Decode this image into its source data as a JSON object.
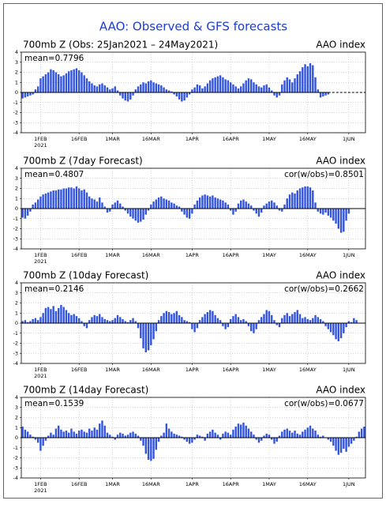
{
  "chart_data": [
    {
      "type": "bar",
      "title": "AAO: Observed & GFS forecasts",
      "left_title": "700mb Z (Obs: 25Jan2021 – 24May2021)",
      "right_title": "AAO index",
      "mean_label": "mean=0.7796",
      "year_label": "2021",
      "color": "#3355dd",
      "grid": true,
      "xlim": [
        24.5,
        158.5
      ],
      "ylim": [
        -4,
        4
      ],
      "yticks": [
        -4,
        -3,
        -2,
        -1,
        0,
        1,
        2,
        3,
        4
      ],
      "xticks": [
        {
          "value": 32,
          "label": "1FEB"
        },
        {
          "value": 47,
          "label": "16FEB"
        },
        {
          "value": 60,
          "label": "1MAR"
        },
        {
          "value": 75,
          "label": "16MAR"
        },
        {
          "value": 91,
          "label": "1APR"
        },
        {
          "value": 106,
          "label": "16APR"
        },
        {
          "value": 121,
          "label": "1MAY"
        },
        {
          "value": 136,
          "label": "16MAY"
        },
        {
          "value": 152,
          "label": "1JUN"
        }
      ],
      "x": [
        25,
        26,
        27,
        28,
        29,
        30,
        31,
        32,
        33,
        34,
        35,
        36,
        37,
        38,
        39,
        40,
        41,
        42,
        43,
        44,
        45,
        46,
        47,
        48,
        49,
        50,
        51,
        52,
        53,
        54,
        55,
        56,
        57,
        58,
        59,
        60,
        61,
        62,
        63,
        64,
        65,
        66,
        67,
        68,
        69,
        70,
        71,
        72,
        73,
        74,
        75,
        76,
        77,
        78,
        79,
        80,
        81,
        82,
        83,
        84,
        85,
        86,
        87,
        88,
        89,
        90,
        91,
        92,
        93,
        94,
        95,
        96,
        97,
        98,
        99,
        100,
        101,
        102,
        103,
        104,
        105,
        106,
        107,
        108,
        109,
        110,
        111,
        112,
        113,
        114,
        115,
        116,
        117,
        118,
        119,
        120,
        121,
        122,
        123,
        124,
        125,
        126,
        127,
        128,
        129,
        130,
        131,
        132,
        133,
        134,
        135,
        136,
        137,
        138,
        139,
        140,
        141,
        142,
        143,
        144
      ],
      "values": [
        -0.6,
        -0.5,
        -0.4,
        -0.3,
        -0.2,
        0.3,
        0.6,
        1.4,
        1.6,
        1.8,
        2.0,
        2.3,
        2.2,
        2.0,
        1.8,
        1.6,
        1.7,
        1.9,
        2.1,
        2.2,
        2.3,
        2.4,
        2.2,
        2.0,
        1.7,
        1.4,
        1.1,
        0.9,
        0.7,
        0.6,
        0.8,
        0.9,
        0.7,
        0.5,
        0.3,
        0.4,
        0.6,
        0.2,
        -0.3,
        -0.6,
        -0.8,
        -0.9,
        -0.7,
        -0.3,
        0.3,
        0.6,
        0.8,
        1.0,
        0.9,
        1.1,
        1.2,
        1.0,
        0.9,
        0.8,
        0.7,
        0.5,
        0.3,
        0.2,
        0.1,
        -0.2,
        -0.4,
        -0.7,
        -0.9,
        -0.8,
        -0.5,
        -0.2,
        0.3,
        0.5,
        0.8,
        0.7,
        0.4,
        0.6,
        0.9,
        1.2,
        1.4,
        1.5,
        1.6,
        1.7,
        1.5,
        1.3,
        1.2,
        1.0,
        0.8,
        0.6,
        0.4,
        0.6,
        0.9,
        1.2,
        1.4,
        1.3,
        1.0,
        0.8,
        0.6,
        0.5,
        0.7,
        0.8,
        0.5,
        0.2,
        -0.3,
        -0.5,
        -0.3,
        0.8,
        1.2,
        1.5,
        1.3,
        1.0,
        1.4,
        1.8,
        2.1,
        2.5,
        2.8,
        2.6,
        2.9,
        2.7,
        1.5,
        0.3,
        -0.5,
        -0.4,
        -0.3,
        -0.2
      ]
    },
    {
      "type": "bar",
      "left_title": "700mb Z (7day Forecast)",
      "right_title": "AAO index",
      "mean_label": "mean=0.4807",
      "cor_label": "cor(w/obs)=0.8501",
      "year_label": "2021",
      "color": "#3355dd",
      "grid": true,
      "xlim": [
        24.5,
        158.5
      ],
      "ylim": [
        -4,
        4
      ],
      "yticks": [
        -4,
        -3,
        -2,
        -1,
        0,
        1,
        2,
        3,
        4
      ],
      "xticks": [
        {
          "value": 32,
          "label": "1FEB"
        },
        {
          "value": 47,
          "label": "16FEB"
        },
        {
          "value": 60,
          "label": "1MAR"
        },
        {
          "value": 75,
          "label": "16MAR"
        },
        {
          "value": 91,
          "label": "1APR"
        },
        {
          "value": 106,
          "label": "16APR"
        },
        {
          "value": 121,
          "label": "1MAY"
        },
        {
          "value": 136,
          "label": "16MAY"
        },
        {
          "value": 152,
          "label": "1JUN"
        }
      ],
      "x": [
        25,
        26,
        27,
        28,
        29,
        30,
        31,
        32,
        33,
        34,
        35,
        36,
        37,
        38,
        39,
        40,
        41,
        42,
        43,
        44,
        45,
        46,
        47,
        48,
        49,
        50,
        51,
        52,
        53,
        54,
        55,
        56,
        57,
        58,
        59,
        60,
        61,
        62,
        63,
        64,
        65,
        66,
        67,
        68,
        69,
        70,
        71,
        72,
        73,
        74,
        75,
        76,
        77,
        78,
        79,
        80,
        81,
        82,
        83,
        84,
        85,
        86,
        87,
        88,
        89,
        90,
        91,
        92,
        93,
        94,
        95,
        96,
        97,
        98,
        99,
        100,
        101,
        102,
        103,
        104,
        105,
        106,
        107,
        108,
        109,
        110,
        111,
        112,
        113,
        114,
        115,
        116,
        117,
        118,
        119,
        120,
        121,
        122,
        123,
        124,
        125,
        126,
        127,
        128,
        129,
        130,
        131,
        132,
        133,
        134,
        135,
        136,
        137,
        138,
        139,
        140,
        141,
        142,
        143,
        144,
        145,
        146,
        147,
        148,
        149,
        150,
        151,
        152
      ],
      "values": [
        -0.9,
        -1.0,
        -0.7,
        -0.3,
        0.4,
        0.6,
        0.9,
        1.2,
        1.4,
        1.5,
        1.6,
        1.7,
        1.8,
        1.8,
        1.9,
        1.9,
        2.0,
        2.0,
        2.1,
        2.1,
        2.0,
        2.2,
        2.0,
        1.8,
        1.9,
        1.6,
        1.2,
        1.0,
        0.9,
        0.7,
        1.1,
        0.6,
        0.2,
        -0.4,
        -0.3,
        0.4,
        0.6,
        0.8,
        0.5,
        0.2,
        -0.2,
        -0.5,
        -0.8,
        -1.0,
        -1.2,
        -1.4,
        -1.3,
        -1.1,
        -0.6,
        -0.2,
        0.4,
        0.7,
        0.9,
        1.1,
        1.2,
        1.0,
        0.9,
        0.8,
        0.6,
        0.5,
        0.3,
        0.2,
        -0.3,
        -0.6,
        -0.9,
        -1.0,
        -0.5,
        0.4,
        0.8,
        1.1,
        1.3,
        1.4,
        1.3,
        1.2,
        1.3,
        1.1,
        1.0,
        0.9,
        0.8,
        0.6,
        0.4,
        -0.2,
        -0.6,
        -0.3,
        0.5,
        0.8,
        0.9,
        0.7,
        0.5,
        0.3,
        -0.2,
        -0.5,
        -0.8,
        -0.4,
        0.3,
        0.5,
        0.7,
        0.8,
        0.6,
        0.3,
        -0.2,
        -0.3,
        0.4,
        1.0,
        1.4,
        1.6,
        1.5,
        1.8,
        2.0,
        2.1,
        2.2,
        2.2,
        2.1,
        1.8,
        0.6,
        -0.3,
        -0.5,
        -0.6,
        -0.4,
        -0.7,
        -0.9,
        -1.2,
        -1.5,
        -2.0,
        -2.4,
        -2.3,
        -1.2,
        -0.5
      ]
    },
    {
      "type": "bar",
      "left_title": "700mb Z (10day Forecast)",
      "right_title": "AAO index",
      "mean_label": "mean=0.2146",
      "cor_label": "cor(w/obs)=0.2662",
      "year_label": "2021",
      "color": "#3355dd",
      "grid": true,
      "xlim": [
        24.5,
        158.5
      ],
      "ylim": [
        -4,
        4
      ],
      "yticks": [
        -4,
        -3,
        -2,
        -1,
        0,
        1,
        2,
        3,
        4
      ],
      "xticks": [
        {
          "value": 32,
          "label": "1FEB"
        },
        {
          "value": 47,
          "label": "16FEB"
        },
        {
          "value": 60,
          "label": "1MAR"
        },
        {
          "value": 75,
          "label": "16MAR"
        },
        {
          "value": 91,
          "label": "1APR"
        },
        {
          "value": 106,
          "label": "16APR"
        },
        {
          "value": 121,
          "label": "1MAY"
        },
        {
          "value": 136,
          "label": "16MAY"
        },
        {
          "value": 152,
          "label": "1JUN"
        }
      ],
      "x": [
        25,
        26,
        27,
        28,
        29,
        30,
        31,
        32,
        33,
        34,
        35,
        36,
        37,
        38,
        39,
        40,
        41,
        42,
        43,
        44,
        45,
        46,
        47,
        48,
        49,
        50,
        51,
        52,
        53,
        54,
        55,
        56,
        57,
        58,
        59,
        60,
        61,
        62,
        63,
        64,
        65,
        66,
        67,
        68,
        69,
        70,
        71,
        72,
        73,
        74,
        75,
        76,
        77,
        78,
        79,
        80,
        81,
        82,
        83,
        84,
        85,
        86,
        87,
        88,
        89,
        90,
        91,
        92,
        93,
        94,
        95,
        96,
        97,
        98,
        99,
        100,
        101,
        102,
        103,
        104,
        105,
        106,
        107,
        108,
        109,
        110,
        111,
        112,
        113,
        114,
        115,
        116,
        117,
        118,
        119,
        120,
        121,
        122,
        123,
        124,
        125,
        126,
        127,
        128,
        129,
        130,
        131,
        132,
        133,
        134,
        135,
        136,
        137,
        138,
        139,
        140,
        141,
        142,
        143,
        144,
        145,
        146,
        147,
        148,
        149,
        150,
        151,
        152,
        153,
        154,
        155
      ],
      "values": [
        0.2,
        0.3,
        0.1,
        0.2,
        0.4,
        0.5,
        0.3,
        0.6,
        1.0,
        1.5,
        1.6,
        1.4,
        1.7,
        1.2,
        1.5,
        1.8,
        1.6,
        1.3,
        1.0,
        0.8,
        0.9,
        0.7,
        0.5,
        0.2,
        -0.3,
        -0.5,
        0.3,
        0.6,
        0.8,
        0.7,
        0.9,
        0.6,
        0.4,
        0.3,
        0.2,
        0.3,
        0.5,
        0.8,
        0.6,
        0.4,
        0.2,
        0.1,
        0.3,
        0.5,
        0.2,
        -0.5,
        -1.5,
        -2.5,
        -2.9,
        -2.7,
        -2.2,
        -1.6,
        -0.8,
        0.3,
        0.7,
        1.0,
        1.2,
        1.1,
        0.9,
        1.0,
        1.2,
        0.8,
        0.6,
        0.3,
        0.2,
        0.1,
        -0.6,
        -0.9,
        -0.5,
        0.3,
        0.6,
        0.9,
        1.1,
        1.3,
        1.2,
        0.8,
        0.5,
        0.3,
        -0.3,
        -0.6,
        -0.4,
        0.4,
        0.7,
        0.9,
        0.6,
        0.3,
        0.4,
        0.2,
        -0.3,
        -0.8,
        -1.0,
        -0.6,
        0.3,
        0.6,
        0.9,
        1.3,
        1.2,
        0.8,
        0.3,
        -0.2,
        -0.4,
        0.5,
        0.8,
        1.0,
        0.7,
        0.9,
        1.1,
        1.3,
        0.9,
        0.5,
        0.6,
        0.4,
        0.3,
        0.5,
        0.8,
        0.6,
        0.4,
        0.2,
        -0.3,
        -0.6,
        -0.9,
        -1.2,
        -1.6,
        -1.8,
        -1.5,
        -1.0,
        -0.4,
        0.2,
        0.1,
        0.5,
        0.3
      ]
    },
    {
      "type": "bar",
      "left_title": "700mb Z (14day Forecast)",
      "right_title": "AAO index",
      "mean_label": "mean=0.1539",
      "cor_label": "cor(w/obs)=0.0677",
      "year_label": "2021",
      "color": "#3355dd",
      "grid": true,
      "xlim": [
        24.5,
        158.5
      ],
      "ylim": [
        -4,
        4
      ],
      "yticks": [
        -4,
        -3,
        -2,
        -1,
        0,
        1,
        2,
        3,
        4
      ],
      "xticks": [
        {
          "value": 32,
          "label": "1FEB"
        },
        {
          "value": 47,
          "label": "16FEB"
        },
        {
          "value": 60,
          "label": "1MAR"
        },
        {
          "value": 75,
          "label": "16MAR"
        },
        {
          "value": 91,
          "label": "1APR"
        },
        {
          "value": 106,
          "label": "16APR"
        },
        {
          "value": 121,
          "label": "1MAY"
        },
        {
          "value": 136,
          "label": "16MAY"
        },
        {
          "value": 152,
          "label": "1JUN"
        }
      ],
      "x": [
        25,
        26,
        27,
        28,
        29,
        30,
        31,
        32,
        33,
        34,
        35,
        36,
        37,
        38,
        39,
        40,
        41,
        42,
        43,
        44,
        45,
        46,
        47,
        48,
        49,
        50,
        51,
        52,
        53,
        54,
        55,
        56,
        57,
        58,
        59,
        60,
        61,
        62,
        63,
        64,
        65,
        66,
        67,
        68,
        69,
        70,
        71,
        72,
        73,
        74,
        75,
        76,
        77,
        78,
        79,
        80,
        81,
        82,
        83,
        84,
        85,
        86,
        87,
        88,
        89,
        90,
        91,
        92,
        93,
        94,
        95,
        96,
        97,
        98,
        99,
        100,
        101,
        102,
        103,
        104,
        105,
        106,
        107,
        108,
        109,
        110,
        111,
        112,
        113,
        114,
        115,
        116,
        117,
        118,
        119,
        120,
        121,
        122,
        123,
        124,
        125,
        126,
        127,
        128,
        129,
        130,
        131,
        132,
        133,
        134,
        135,
        136,
        137,
        138,
        139,
        140,
        141,
        142,
        143,
        144,
        145,
        146,
        147,
        148,
        149,
        150,
        151,
        152,
        153,
        154,
        155,
        156,
        157,
        158
      ],
      "values": [
        1.1,
        0.8,
        0.6,
        0.3,
        0.1,
        -0.2,
        -0.5,
        -1.3,
        -0.8,
        -0.3,
        0.2,
        0.5,
        0.3,
        0.9,
        1.2,
        0.8,
        0.6,
        0.7,
        0.5,
        0.9,
        0.6,
        0.4,
        0.7,
        0.8,
        0.6,
        0.5,
        0.9,
        0.7,
        1.0,
        0.8,
        1.4,
        1.7,
        1.2,
        0.5,
        0.3,
        0.1,
        -0.2,
        0.3,
        0.5,
        0.4,
        0.2,
        0.3,
        0.5,
        0.6,
        0.4,
        0.2,
        -0.3,
        -0.8,
        -1.6,
        -2.2,
        -2.3,
        -2.1,
        -1.2,
        -0.4,
        0.2,
        0.5,
        1.4,
        0.9,
        0.6,
        0.4,
        0.3,
        0.2,
        0.1,
        -0.2,
        -0.4,
        -0.6,
        -0.5,
        -0.2,
        0.3,
        0.2,
        0.1,
        -0.3,
        0.4,
        0.6,
        0.8,
        0.5,
        0.3,
        -0.2,
        0.4,
        0.6,
        0.5,
        0.3,
        0.8,
        1.1,
        1.4,
        1.3,
        1.5,
        1.2,
        0.9,
        0.6,
        0.3,
        -0.2,
        -0.5,
        -0.3,
        0.2,
        0.4,
        0.3,
        -0.2,
        -0.6,
        -0.4,
        0.2,
        0.6,
        0.8,
        0.9,
        0.7,
        0.5,
        0.7,
        0.4,
        0.3,
        0.6,
        0.8,
        1.0,
        1.2,
        0.9,
        0.7,
        0.3,
        0.1,
        0.2,
        0.0,
        -0.2,
        -0.4,
        -0.8,
        -1.3,
        -1.7,
        -1.5,
        -1.1,
        -1.4,
        -0.9,
        -0.6,
        -0.3,
        0.1,
        0.6,
        0.9,
        1.1
      ]
    }
  ]
}
